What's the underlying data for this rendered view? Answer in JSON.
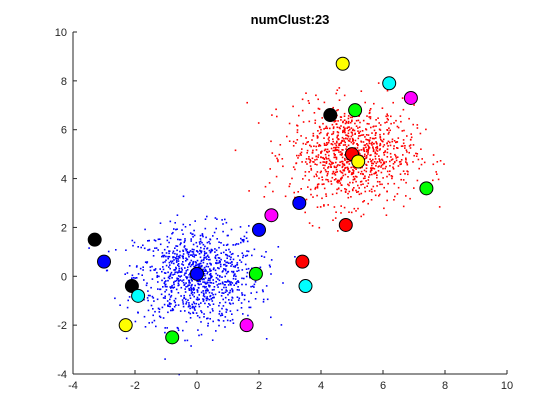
{
  "chart_data": {
    "type": "scatter",
    "title": "numClust:23",
    "xlabel": "",
    "ylabel": "",
    "xlim": [
      -4,
      10
    ],
    "ylim": [
      -4,
      10
    ],
    "xticks": [
      -4,
      -2,
      0,
      2,
      4,
      6,
      8,
      10
    ],
    "yticks": [
      -4,
      -2,
      0,
      2,
      4,
      6,
      8,
      10
    ],
    "grid": false,
    "clouds": [
      {
        "color": "#0000ff",
        "center": [
          0,
          0
        ],
        "spread": 1.0,
        "count": 1000
      },
      {
        "color": "#ff0000",
        "center": [
          5,
          5
        ],
        "spread": 1.0,
        "count": 1000
      }
    ],
    "cluster_markers": [
      {
        "x": 0.0,
        "y": 0.1,
        "color": "#0000ff"
      },
      {
        "x": 5.0,
        "y": 5.0,
        "color": "#ff0000"
      },
      {
        "x": 4.7,
        "y": 8.7,
        "color": "#ffff00"
      },
      {
        "x": 6.2,
        "y": 7.9,
        "color": "#00ffff"
      },
      {
        "x": 6.9,
        "y": 7.3,
        "color": "#ff00ff"
      },
      {
        "x": 4.3,
        "y": 6.6,
        "color": "#000000"
      },
      {
        "x": 5.1,
        "y": 6.8,
        "color": "#00ff00"
      },
      {
        "x": 5.2,
        "y": 4.7,
        "color": "#ffff00"
      },
      {
        "x": 7.4,
        "y": 3.6,
        "color": "#00ff00"
      },
      {
        "x": 3.3,
        "y": 3.0,
        "color": "#0000ff"
      },
      {
        "x": 2.4,
        "y": 2.5,
        "color": "#ff00ff"
      },
      {
        "x": 4.8,
        "y": 2.1,
        "color": "#ff0000"
      },
      {
        "x": 2.0,
        "y": 1.9,
        "color": "#0000ff"
      },
      {
        "x": 3.4,
        "y": 0.6,
        "color": "#ff0000"
      },
      {
        "x": 1.9,
        "y": 0.1,
        "color": "#00ff00"
      },
      {
        "x": 3.5,
        "y": -0.4,
        "color": "#00ffff"
      },
      {
        "x": -3.3,
        "y": 1.5,
        "color": "#000000"
      },
      {
        "x": -3.0,
        "y": 0.6,
        "color": "#0000ff"
      },
      {
        "x": -2.1,
        "y": -0.4,
        "color": "#000000"
      },
      {
        "x": -1.9,
        "y": -0.8,
        "color": "#00ffff"
      },
      {
        "x": -2.3,
        "y": -2.0,
        "color": "#ffff00"
      },
      {
        "x": -0.8,
        "y": -2.5,
        "color": "#00ff00"
      },
      {
        "x": 1.6,
        "y": -2.0,
        "color": "#ff00ff"
      }
    ]
  }
}
